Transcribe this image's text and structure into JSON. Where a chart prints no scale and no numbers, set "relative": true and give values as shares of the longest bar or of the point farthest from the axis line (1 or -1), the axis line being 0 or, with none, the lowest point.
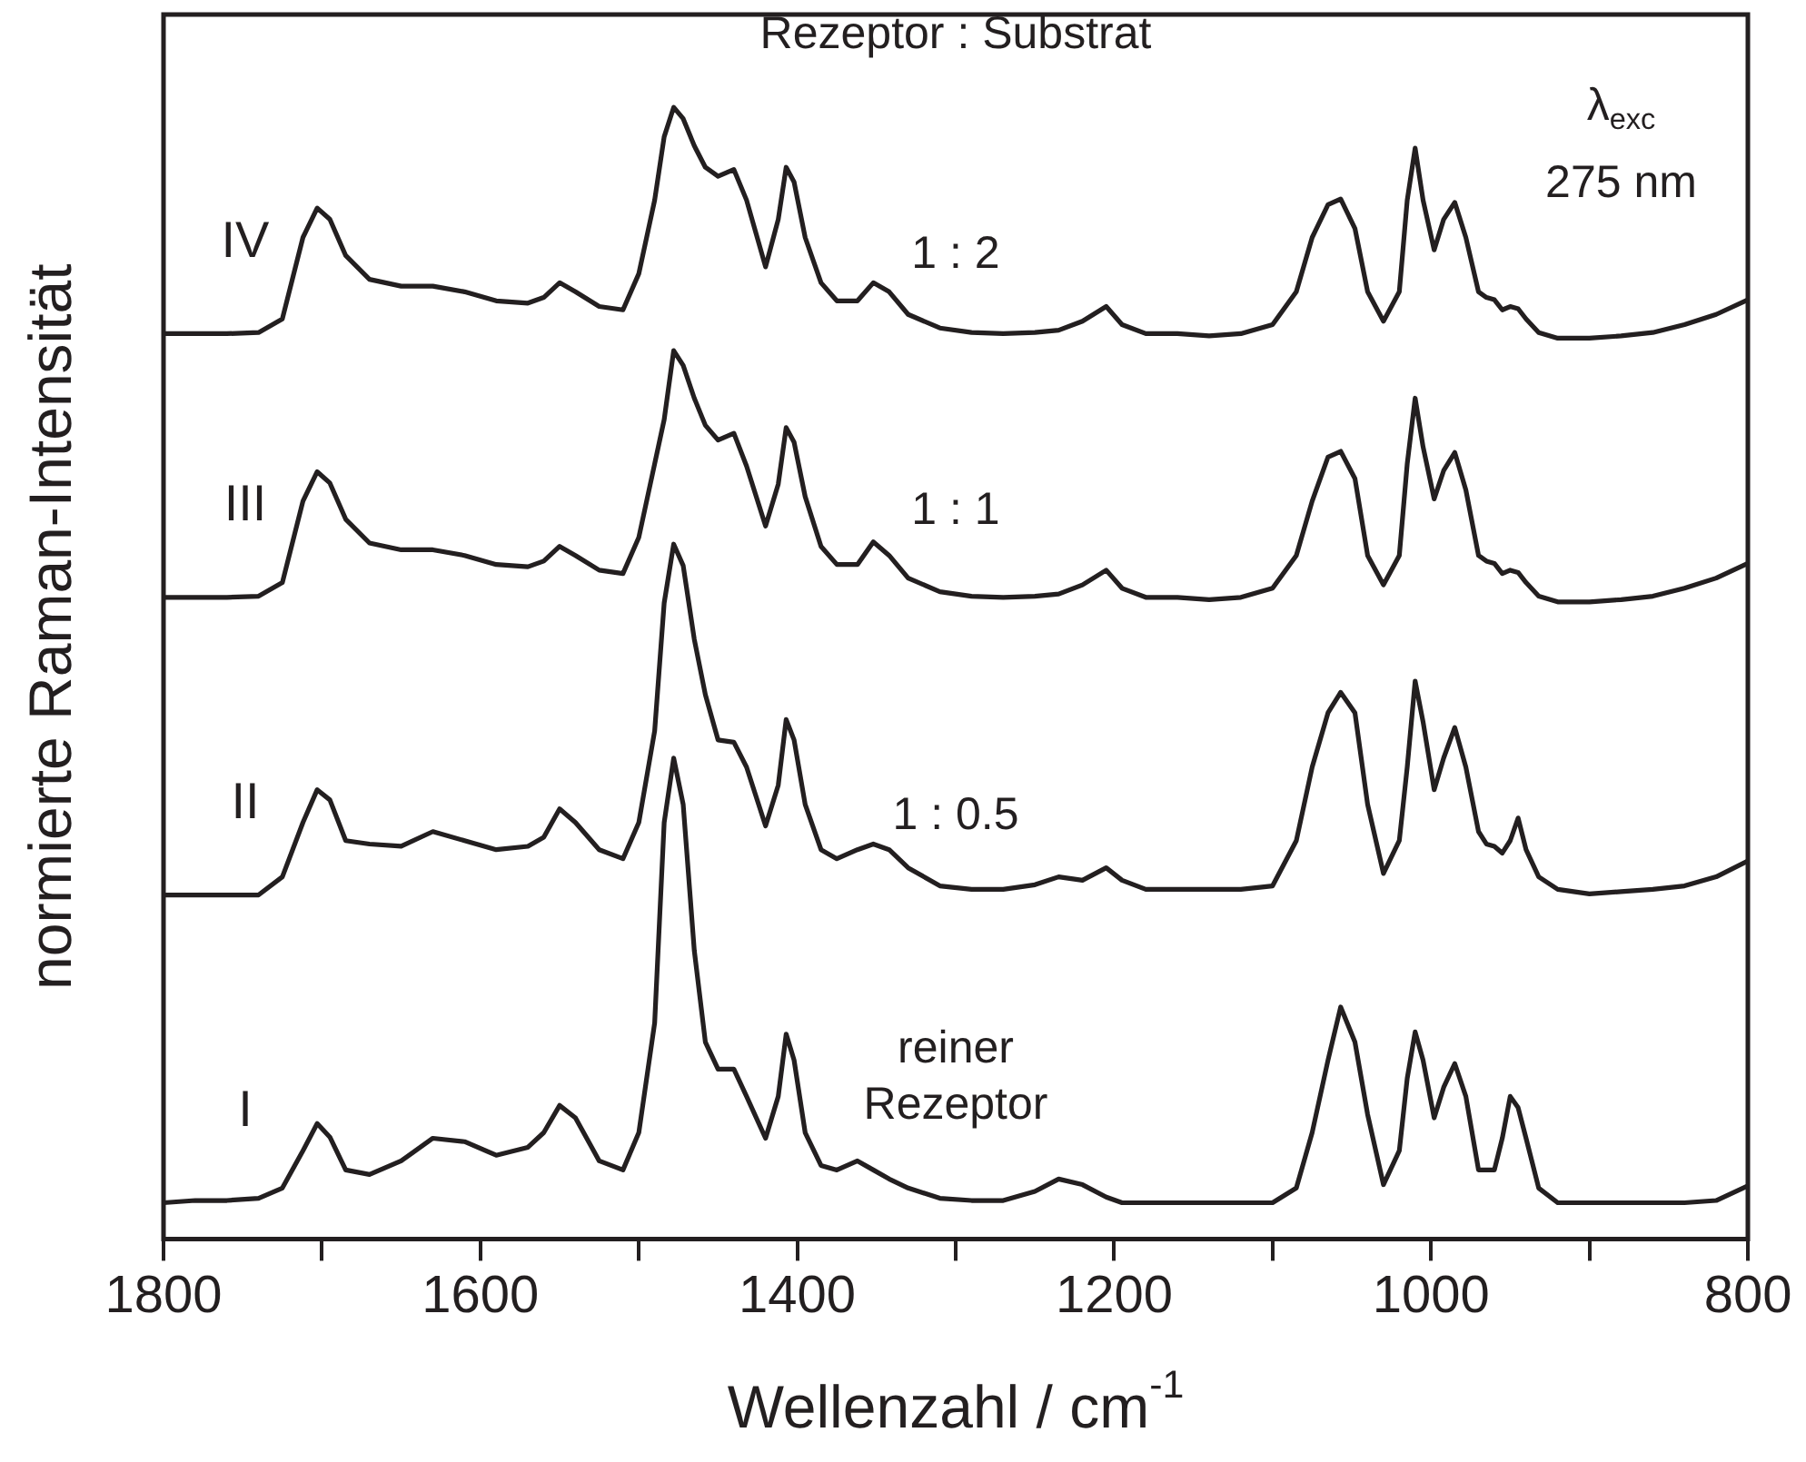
{
  "chart_data": {
    "type": "line",
    "relative": true,
    "xlabel": "Wellenzahl / cm$^{-1}$",
    "ylabel": "normierte Raman-Intensität",
    "annotations": [
      "Rezeptor : Substrat",
      "1 : 2",
      "1 : 1",
      "1 : 0.5",
      "reiner Rezeptor",
      "λ$_{exc}$",
      "275 nm"
    ],
    "xlim": [
      1800,
      800
    ],
    "xticks": [
      1800,
      {
        "value": 1700,
        "label": null
      },
      1600,
      {
        "value": 1500,
        "label": null
      },
      1400,
      {
        "value": 1300,
        "label": null
      },
      1200,
      {
        "value": 1100,
        "label": null
      },
      1000,
      {
        "value": 900,
        "label": null
      },
      800
    ],
    "grid": false,
    "marker": "none",
    "line_style": "solid",
    "x": [
      1800,
      1780,
      1760,
      1740,
      1725,
      1712,
      1703,
      1695,
      1685,
      1670,
      1650,
      1630,
      1610,
      1590,
      1570,
      1560,
      1550,
      1540,
      1525,
      1510,
      1500,
      1490,
      1484,
      1478,
      1472,
      1465,
      1458,
      1450,
      1440,
      1432,
      1420,
      1412,
      1407,
      1402,
      1395,
      1385,
      1375,
      1362,
      1352,
      1342,
      1330,
      1310,
      1290,
      1270,
      1250,
      1235,
      1220,
      1205,
      1195,
      1180,
      1160,
      1140,
      1120,
      1100,
      1085,
      1075,
      1065,
      1057,
      1048,
      1040,
      1030,
      1020,
      1015,
      1010,
      1005,
      998,
      992,
      985,
      978,
      970,
      965,
      960,
      955,
      950,
      945,
      940,
      932,
      920,
      900,
      880,
      860,
      840,
      820,
      800
    ],
    "series": [
      {
        "name": "I",
        "color": "#231f20",
        "values": [
          0.032,
          0.034,
          0.034,
          0.036,
          0.045,
          0.078,
          0.102,
          0.09,
          0.061,
          0.057,
          0.069,
          0.089,
          0.086,
          0.074,
          0.081,
          0.094,
          0.118,
          0.107,
          0.069,
          0.061,
          0.094,
          0.191,
          0.368,
          0.425,
          0.384,
          0.255,
          0.174,
          0.15,
          0.15,
          0.126,
          0.089,
          0.126,
          0.181,
          0.158,
          0.094,
          0.065,
          0.061,
          0.069,
          0.061,
          0.053,
          0.045,
          0.036,
          0.034,
          0.034,
          0.042,
          0.053,
          0.048,
          0.037,
          0.032,
          0.032,
          0.032,
          0.032,
          0.032,
          0.032,
          0.045,
          0.094,
          0.158,
          0.205,
          0.174,
          0.11,
          0.048,
          0.078,
          0.142,
          0.183,
          0.158,
          0.107,
          0.134,
          0.155,
          0.126,
          0.061,
          0.061,
          0.061,
          0.089,
          0.126,
          0.116,
          0.089,
          0.045,
          0.032,
          0.032,
          0.032,
          0.032,
          0.032,
          0.034,
          0.047
        ]
      },
      {
        "name": "II",
        "color": "#231f20",
        "values": [
          0.304,
          0.304,
          0.304,
          0.304,
          0.32,
          0.368,
          0.397,
          0.388,
          0.352,
          0.349,
          0.347,
          0.36,
          0.352,
          0.344,
          0.347,
          0.355,
          0.38,
          0.368,
          0.344,
          0.336,
          0.368,
          0.449,
          0.562,
          0.614,
          0.595,
          0.53,
          0.481,
          0.441,
          0.439,
          0.417,
          0.365,
          0.401,
          0.459,
          0.441,
          0.384,
          0.344,
          0.336,
          0.344,
          0.349,
          0.344,
          0.328,
          0.312,
          0.309,
          0.309,
          0.313,
          0.32,
          0.317,
          0.328,
          0.317,
          0.309,
          0.309,
          0.309,
          0.309,
          0.312,
          0.352,
          0.417,
          0.465,
          0.483,
          0.465,
          0.384,
          0.323,
          0.352,
          0.417,
          0.493,
          0.457,
          0.397,
          0.425,
          0.452,
          0.417,
          0.36,
          0.349,
          0.347,
          0.341,
          0.352,
          0.372,
          0.344,
          0.32,
          0.309,
          0.305,
          0.307,
          0.309,
          0.312,
          0.32,
          0.334
        ]
      },
      {
        "name": "III",
        "color": "#231f20",
        "values": [
          0.567,
          0.567,
          0.567,
          0.568,
          0.58,
          0.652,
          0.678,
          0.668,
          0.636,
          0.615,
          0.609,
          0.609,
          0.604,
          0.596,
          0.594,
          0.599,
          0.612,
          0.604,
          0.591,
          0.588,
          0.62,
          0.685,
          0.724,
          0.785,
          0.772,
          0.743,
          0.719,
          0.706,
          0.712,
          0.683,
          0.63,
          0.667,
          0.717,
          0.704,
          0.656,
          0.612,
          0.596,
          0.596,
          0.616,
          0.604,
          0.584,
          0.572,
          0.568,
          0.567,
          0.568,
          0.57,
          0.578,
          0.591,
          0.575,
          0.567,
          0.567,
          0.565,
          0.567,
          0.575,
          0.604,
          0.652,
          0.691,
          0.696,
          0.672,
          0.604,
          0.578,
          0.604,
          0.685,
          0.743,
          0.7,
          0.654,
          0.679,
          0.695,
          0.662,
          0.604,
          0.599,
          0.597,
          0.588,
          0.591,
          0.589,
          0.58,
          0.568,
          0.563,
          0.563,
          0.565,
          0.568,
          0.575,
          0.584,
          0.597
        ]
      },
      {
        "name": "IV",
        "color": "#231f20",
        "values": [
          0.8,
          0.8,
          0.8,
          0.801,
          0.813,
          0.885,
          0.911,
          0.901,
          0.869,
          0.848,
          0.842,
          0.842,
          0.837,
          0.829,
          0.827,
          0.832,
          0.845,
          0.837,
          0.824,
          0.821,
          0.853,
          0.918,
          0.974,
          1.0,
          0.99,
          0.966,
          0.947,
          0.939,
          0.945,
          0.918,
          0.859,
          0.901,
          0.947,
          0.934,
          0.885,
          0.845,
          0.829,
          0.829,
          0.845,
          0.837,
          0.817,
          0.805,
          0.801,
          0.8,
          0.801,
          0.803,
          0.811,
          0.824,
          0.808,
          0.8,
          0.8,
          0.798,
          0.8,
          0.808,
          0.837,
          0.885,
          0.914,
          0.919,
          0.893,
          0.837,
          0.811,
          0.837,
          0.918,
          0.964,
          0.918,
          0.874,
          0.901,
          0.916,
          0.885,
          0.837,
          0.832,
          0.83,
          0.821,
          0.824,
          0.822,
          0.813,
          0.801,
          0.796,
          0.796,
          0.798,
          0.801,
          0.808,
          0.817,
          0.83
        ]
      }
    ]
  }
}
